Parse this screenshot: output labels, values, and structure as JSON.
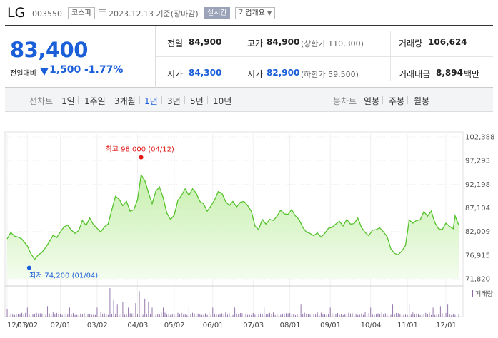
{
  "header": {
    "name": "LG",
    "code": "003550",
    "market": "코스피",
    "date": "2023.12.13 기준(장마감)",
    "live_label": "실시간",
    "company_label": "기업개요"
  },
  "price": {
    "current": "83,400",
    "prev_label": "전일대비",
    "change": "1,500",
    "rate": "-1.77%"
  },
  "stats": {
    "prev_close_label": "전일",
    "prev_close": "84,900",
    "high_label": "고가",
    "high": "84,900",
    "upper_limit": "(상한가 110,300)",
    "volume_label": "거래량",
    "volume": "106,624",
    "open_label": "시가",
    "open": "84,300",
    "low_label": "저가",
    "low": "82,900",
    "lower_limit": "(하한가 59,500)",
    "amount_label": "거래대금",
    "amount": "8,894",
    "amount_unit": "백만"
  },
  "period_bar": {
    "line_chart_label": "선차트",
    "periods": [
      "1일",
      "1주일",
      "3개월",
      "1년",
      "3년",
      "5년",
      "10년"
    ],
    "active_period": "1년",
    "candle_label": "봉차트",
    "candles": [
      "일봉",
      "주봉",
      "월봉"
    ]
  },
  "colors": {
    "accent_blue": "#1a5ed8",
    "line_green": "#55c22a",
    "fill_green": "#c9f1b1",
    "high_red": "#e01818",
    "volume_purple": "#8a6aa6"
  },
  "chart_data": {
    "type": "area",
    "y_ticks": [
      "102,388",
      "97,293",
      "92,198",
      "87,104",
      "82,009",
      "76,915",
      "71,820"
    ],
    "y_tick_values": [
      102388,
      97293,
      92198,
      87104,
      82009,
      76915,
      71820
    ],
    "ylim": [
      71820,
      102388
    ],
    "x_ticks": [
      "12/13",
      "01/02",
      "02/01",
      "03/02",
      "04/03",
      "05/02",
      "06/01",
      "07/03",
      "08/01",
      "09/01",
      "10/04",
      "11/01",
      "12/01"
    ],
    "x_tick_pos": [
      0,
      11,
      29,
      49,
      71,
      91,
      112,
      134,
      154,
      176,
      198,
      218,
      239
    ],
    "n_points": 247,
    "anchors": [
      [
        0,
        80400
      ],
      [
        2,
        81800
      ],
      [
        4,
        81000
      ],
      [
        6,
        80800
      ],
      [
        8,
        80400
      ],
      [
        11,
        78900
      ],
      [
        13,
        77200
      ],
      [
        15,
        76000
      ],
      [
        17,
        77000
      ],
      [
        19,
        77500
      ],
      [
        21,
        78600
      ],
      [
        23,
        79800
      ],
      [
        25,
        81200
      ],
      [
        27,
        80700
      ],
      [
        29,
        81900
      ],
      [
        31,
        83000
      ],
      [
        33,
        83400
      ],
      [
        35,
        82300
      ],
      [
        37,
        81600
      ],
      [
        39,
        82200
      ],
      [
        41,
        84400
      ],
      [
        43,
        83300
      ],
      [
        45,
        84900
      ],
      [
        47,
        83500
      ],
      [
        49,
        82700
      ],
      [
        51,
        81900
      ],
      [
        53,
        83000
      ],
      [
        55,
        83600
      ],
      [
        57,
        86600
      ],
      [
        59,
        89600
      ],
      [
        61,
        89000
      ],
      [
        63,
        87600
      ],
      [
        65,
        88500
      ],
      [
        67,
        86400
      ],
      [
        69,
        86700
      ],
      [
        71,
        88800
      ],
      [
        73,
        94200
      ],
      [
        75,
        93000
      ],
      [
        77,
        90400
      ],
      [
        79,
        88000
      ],
      [
        81,
        90700
      ],
      [
        83,
        91600
      ],
      [
        85,
        89300
      ],
      [
        87,
        86000
      ],
      [
        89,
        84600
      ],
      [
        91,
        85500
      ],
      [
        93,
        88700
      ],
      [
        95,
        89800
      ],
      [
        97,
        91200
      ],
      [
        99,
        89800
      ],
      [
        101,
        91200
      ],
      [
        103,
        90300
      ],
      [
        105,
        88500
      ],
      [
        107,
        88000
      ],
      [
        109,
        86400
      ],
      [
        111,
        87500
      ],
      [
        113,
        88800
      ],
      [
        115,
        90600
      ],
      [
        117,
        90300
      ],
      [
        119,
        88500
      ],
      [
        121,
        87600
      ],
      [
        123,
        88500
      ],
      [
        125,
        87300
      ],
      [
        127,
        88300
      ],
      [
        129,
        88500
      ],
      [
        131,
        87600
      ],
      [
        133,
        86400
      ],
      [
        135,
        83200
      ],
      [
        137,
        82400
      ],
      [
        139,
        84600
      ],
      [
        141,
        83600
      ],
      [
        143,
        84600
      ],
      [
        145,
        84400
      ],
      [
        147,
        85300
      ],
      [
        149,
        86600
      ],
      [
        151,
        85800
      ],
      [
        153,
        85700
      ],
      [
        155,
        86700
      ],
      [
        157,
        85400
      ],
      [
        159,
        84600
      ],
      [
        161,
        82900
      ],
      [
        163,
        81900
      ],
      [
        165,
        81600
      ],
      [
        167,
        81100
      ],
      [
        169,
        81700
      ],
      [
        171,
        80800
      ],
      [
        173,
        81600
      ],
      [
        175,
        82700
      ],
      [
        177,
        82900
      ],
      [
        179,
        83600
      ],
      [
        181,
        84200
      ],
      [
        183,
        83200
      ],
      [
        185,
        84600
      ],
      [
        187,
        83600
      ],
      [
        189,
        83700
      ],
      [
        191,
        84900
      ],
      [
        193,
        82900
      ],
      [
        195,
        81800
      ],
      [
        197,
        81100
      ],
      [
        199,
        82300
      ],
      [
        201,
        82400
      ],
      [
        203,
        82800
      ],
      [
        205,
        81900
      ],
      [
        207,
        80900
      ],
      [
        209,
        78300
      ],
      [
        211,
        77300
      ],
      [
        213,
        77000
      ],
      [
        215,
        77800
      ],
      [
        217,
        79000
      ],
      [
        219,
        84500
      ],
      [
        221,
        83800
      ],
      [
        223,
        84400
      ],
      [
        225,
        84500
      ],
      [
        227,
        86300
      ],
      [
        229,
        85300
      ],
      [
        231,
        86400
      ],
      [
        233,
        83900
      ],
      [
        235,
        82600
      ],
      [
        237,
        82400
      ],
      [
        239,
        83800
      ],
      [
        241,
        83100
      ],
      [
        243,
        82600
      ],
      [
        244,
        85400
      ],
      [
        246,
        83400
      ]
    ],
    "high_annotation": {
      "label": "최고 98,000 (04/12)",
      "value": 98000,
      "index": 73
    },
    "low_annotation": {
      "label": "최저 74,200 (01/04)",
      "value": 74200,
      "index": 12
    },
    "volume_legend": "거래량",
    "volume_spikes": [
      [
        0,
        0.25
      ],
      [
        11,
        0.3
      ],
      [
        22,
        0.35
      ],
      [
        34,
        0.3
      ],
      [
        49,
        0.3
      ],
      [
        56,
        0.95
      ],
      [
        58,
        0.55
      ],
      [
        60,
        0.4
      ],
      [
        63,
        0.5
      ],
      [
        66,
        0.3
      ],
      [
        70,
        0.45
      ],
      [
        72,
        0.85
      ],
      [
        73,
        0.45
      ],
      [
        75,
        0.6
      ],
      [
        77,
        0.5
      ],
      [
        79,
        0.3
      ],
      [
        85,
        0.3
      ],
      [
        99,
        0.35
      ],
      [
        112,
        0.3
      ],
      [
        124,
        0.3
      ],
      [
        140,
        0.3
      ],
      [
        160,
        0.4
      ],
      [
        176,
        0.3
      ],
      [
        198,
        0.3
      ],
      [
        210,
        0.4
      ],
      [
        219,
        0.4
      ],
      [
        232,
        0.3
      ],
      [
        236,
        0.35
      ],
      [
        240,
        0.4
      ]
    ]
  }
}
